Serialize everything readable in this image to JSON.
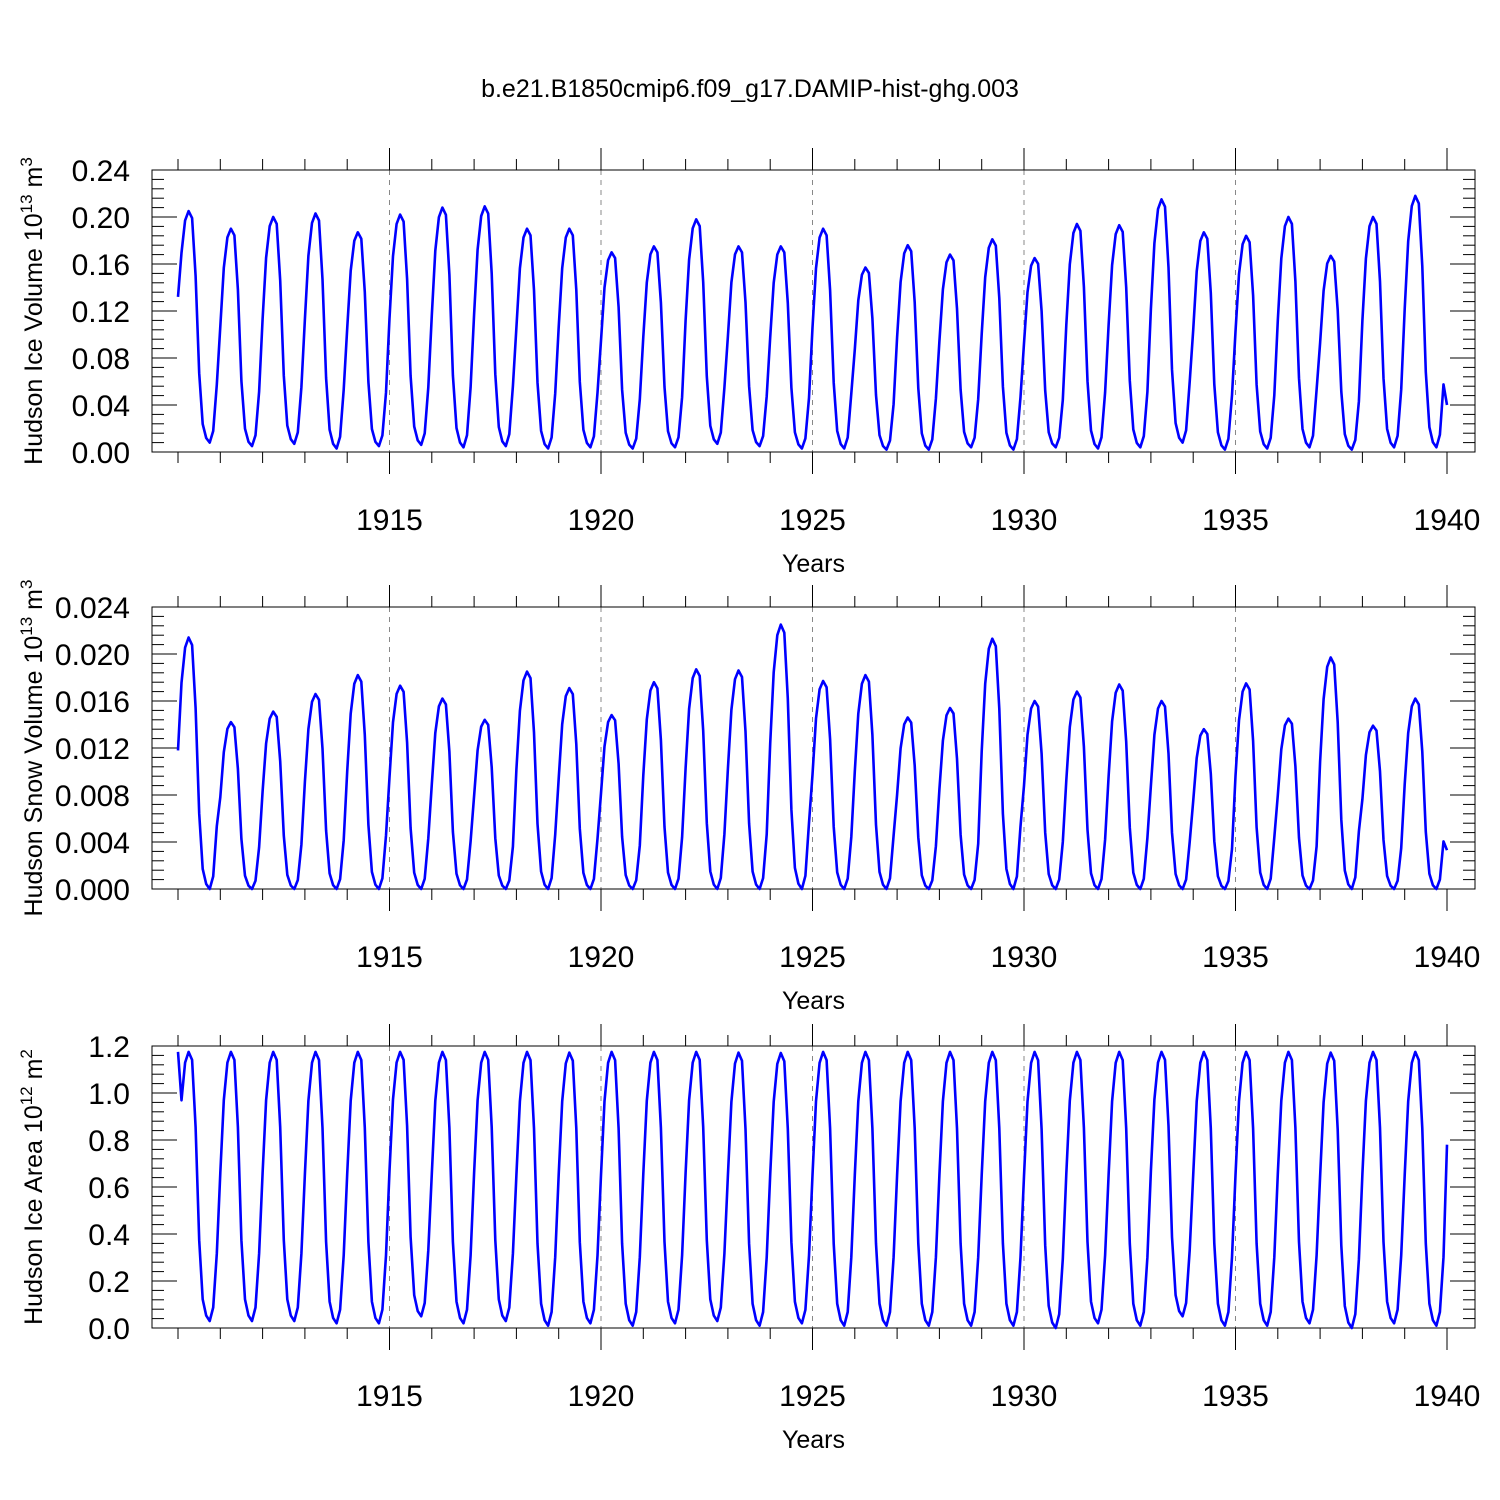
{
  "figure_title": "b.e21.B1850cmip6.f09_g17.DAMIP-hist-ghg.003",
  "colors": {
    "line": "#0000ff",
    "axis": "#000000",
    "grid": "#888888"
  },
  "chart_data": [
    {
      "type": "line",
      "title": "b.e21.B1850cmip6.f09_g17.DAMIP-hist-ghg.003",
      "ylabel_main": "Hudson Ice Volume 10",
      "ylabel_exp": "13",
      "ylabel_unit": " m",
      "ylabel_unit_exp": "3",
      "xlabel": "Years",
      "xlim": [
        1910,
        1940
      ],
      "ylim": [
        0.0,
        0.24
      ],
      "yticks": [
        0.0,
        0.04,
        0.08,
        0.12,
        0.16,
        0.2,
        0.24
      ],
      "ytick_labels": [
        "0.00",
        "0.04",
        "0.08",
        "0.12",
        "0.16",
        "0.20",
        "0.24"
      ],
      "xticks": [
        1915,
        1920,
        1925,
        1930,
        1935,
        1940
      ],
      "xtick_labels": [
        "1915",
        "1920",
        "1925",
        "1930",
        "1935",
        "1940"
      ],
      "start_year": 1910,
      "annual_max": [
        0.205,
        0.19,
        0.2,
        0.203,
        0.187,
        0.202,
        0.208,
        0.209,
        0.19,
        0.19,
        0.17,
        0.175,
        0.198,
        0.175,
        0.175,
        0.19,
        0.157,
        0.176,
        0.168,
        0.181,
        0.165,
        0.194,
        0.193,
        0.215,
        0.187,
        0.184,
        0.2,
        0.167,
        0.2,
        0.218
      ],
      "annual_min": [
        0.008,
        0.005,
        0.007,
        0.003,
        0.005,
        0.006,
        0.004,
        0.005,
        0.003,
        0.004,
        0.003,
        0.004,
        0.007,
        0.005,
        0.003,
        0.003,
        0.002,
        0.002,
        0.004,
        0.002,
        0.004,
        0.003,
        0.004,
        0.008,
        0.002,
        0.003,
        0.004,
        0.002,
        0.004,
        0.004
      ],
      "start_value": 0.132,
      "end_value": 0.04
    },
    {
      "type": "line",
      "ylabel_main": "Hudson Snow Volume 10",
      "ylabel_exp": "13",
      "ylabel_unit": " m",
      "ylabel_unit_exp": "3",
      "xlabel": "Years",
      "xlim": [
        1910,
        1940
      ],
      "ylim": [
        0.0,
        0.024
      ],
      "yticks": [
        0.0,
        0.004,
        0.008,
        0.012,
        0.016,
        0.02,
        0.024
      ],
      "ytick_labels": [
        "0.000",
        "0.004",
        "0.008",
        "0.012",
        "0.016",
        "0.020",
        "0.024"
      ],
      "xticks": [
        1915,
        1920,
        1925,
        1930,
        1935,
        1940
      ],
      "xtick_labels": [
        "1915",
        "1920",
        "1925",
        "1930",
        "1935",
        "1940"
      ],
      "start_year": 1910,
      "annual_max": [
        0.0214,
        0.0142,
        0.0151,
        0.0166,
        0.0182,
        0.0173,
        0.0162,
        0.0144,
        0.0185,
        0.0171,
        0.0148,
        0.0176,
        0.0187,
        0.0186,
        0.0225,
        0.0177,
        0.0182,
        0.0146,
        0.0154,
        0.0213,
        0.016,
        0.0168,
        0.0174,
        0.016,
        0.0136,
        0.0175,
        0.0145,
        0.0197,
        0.0139,
        0.0162
      ],
      "annual_min": [
        0.0,
        0.0,
        0.0,
        0.0,
        0.0,
        0.0,
        0.0,
        0.0,
        0.0,
        0.0,
        0.0,
        0.0,
        0.0,
        0.0,
        0.0,
        0.0,
        0.0,
        0.0,
        0.0,
        0.0,
        0.0,
        0.0,
        0.0,
        0.0,
        0.0,
        0.0,
        0.0,
        0.0,
        0.0,
        0.0
      ],
      "start_value": 0.0118,
      "end_value": 0.0033
    },
    {
      "type": "line",
      "ylabel_main": "Hudson Ice Area 10",
      "ylabel_exp": "12",
      "ylabel_unit": " m",
      "ylabel_unit_exp": "2",
      "xlabel": "Years",
      "xlim": [
        1910,
        1940
      ],
      "ylim": [
        0.0,
        1.2
      ],
      "yticks": [
        0.0,
        0.2,
        0.4,
        0.6,
        0.8,
        1.0,
        1.2
      ],
      "ytick_labels": [
        "0.0",
        "0.2",
        "0.4",
        "0.6",
        "0.8",
        "1.0",
        "1.2"
      ],
      "xticks": [
        1915,
        1920,
        1925,
        1930,
        1935,
        1940
      ],
      "xtick_labels": [
        "1915",
        "1920",
        "1925",
        "1930",
        "1935",
        "1940"
      ],
      "start_year": 1910,
      "annual_max": [
        1.175,
        1.175,
        1.175,
        1.175,
        1.175,
        1.175,
        1.175,
        1.175,
        1.175,
        1.172,
        1.175,
        1.175,
        1.175,
        1.172,
        1.17,
        1.175,
        1.175,
        1.175,
        1.175,
        1.175,
        1.175,
        1.175,
        1.175,
        1.175,
        1.175,
        1.175,
        1.175,
        1.172,
        1.175,
        1.175
      ],
      "annual_min": [
        0.03,
        0.03,
        0.03,
        0.02,
        0.02,
        0.05,
        0.02,
        0.03,
        0.01,
        0.02,
        0.01,
        0.02,
        0.03,
        0.01,
        0.02,
        0.01,
        0.01,
        0.01,
        0.01,
        0.01,
        0.0,
        0.02,
        0.01,
        0.05,
        0.01,
        0.01,
        0.02,
        0.0,
        0.02,
        0.01
      ],
      "start_value": 1.175,
      "end_value": 0.78
    }
  ]
}
